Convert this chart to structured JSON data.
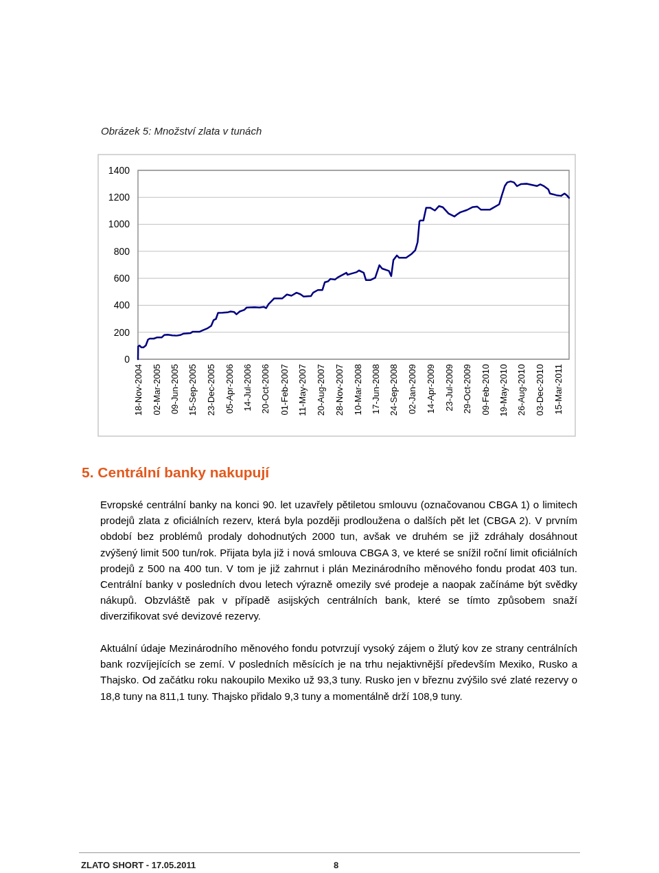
{
  "chart_data": {
    "type": "line",
    "title": "Obrázek 5: Množství zlata v tunách",
    "x": [
      "2004-11-18",
      "2004-11-19",
      "2004-11-26",
      "2004-12-06",
      "2004-12-18",
      "2004-12-31",
      "2005-01-12",
      "2005-01-21",
      "2005-02-13",
      "2005-03-04",
      "2005-03-29",
      "2005-04-11",
      "2005-04-30",
      "2005-05-25",
      "2005-06-19",
      "2005-07-08",
      "2005-07-27",
      "2005-09-03",
      "2005-09-15",
      "2005-10-23",
      "2005-11-11",
      "2005-12-06",
      "2005-12-25",
      "2006-01-07",
      "2006-01-20",
      "2006-02-01",
      "2006-02-26",
      "2006-03-24",
      "2006-04-11",
      "2006-04-30",
      "2006-05-13",
      "2006-05-31",
      "2006-06-25",
      "2006-07-08",
      "2006-08-21",
      "2006-09-16",
      "2006-10-11",
      "2006-10-23",
      "2006-11-05",
      "2006-11-30",
      "2006-12-06",
      "2007-01-20",
      "2007-02-14",
      "2007-03-11",
      "2007-04-08",
      "2007-04-30",
      "2007-05-17",
      "2007-06-26",
      "2007-07-08",
      "2007-08-03",
      "2007-08-28",
      "2007-09-10",
      "2007-09-29",
      "2007-10-11",
      "2007-11-05",
      "2007-11-18",
      "2007-11-24",
      "2008-01-07",
      "2008-01-13",
      "2008-03-04",
      "2008-03-16",
      "2008-04-11",
      "2008-04-23",
      "2008-05-19",
      "2008-06-13",
      "2008-07-06",
      "2008-07-21",
      "2008-08-27",
      "2008-09-09",
      "2008-09-21",
      "2008-10-10",
      "2008-10-23",
      "2008-11-30",
      "2008-12-31",
      "2009-01-19",
      "2009-02-01",
      "2009-02-11",
      "2009-02-16",
      "2009-03-05",
      "2009-03-20",
      "2009-04-11",
      "2009-05-07",
      "2009-05-29",
      "2009-06-20",
      "2009-07-21",
      "2009-08-22",
      "2009-09-04",
      "2009-09-23",
      "2009-10-30",
      "2009-12-01",
      "2009-12-26",
      "2010-01-14",
      "2010-03-06",
      "2010-03-24",
      "2010-04-25",
      "2010-05-10",
      "2010-05-26",
      "2010-06-08",
      "2010-06-27",
      "2010-07-16",
      "2010-08-01",
      "2010-08-22",
      "2010-09-23",
      "2010-10-18",
      "2010-11-18",
      "2010-12-07",
      "2010-12-26",
      "2011-01-20",
      "2011-01-29",
      "2011-03-05",
      "2011-03-31",
      "2011-04-19",
      "2011-05-01",
      "2011-05-14"
    ],
    "series": [
      {
        "color": "#000080",
        "values": [
          0,
          94,
          102,
          88,
          88,
          102,
          145,
          153,
          153,
          162,
          162,
          179,
          182,
          177,
          175,
          179,
          190,
          194,
          204,
          204,
          216,
          230,
          247,
          289,
          298,
          344,
          345,
          347,
          354,
          350,
          333,
          354,
          366,
          383,
          386,
          383,
          388,
          379,
          408,
          442,
          451,
          451,
          480,
          471,
          493,
          481,
          464,
          468,
          493,
          513,
          513,
          570,
          578,
          595,
          590,
          604,
          609,
          641,
          626,
          646,
          658,
          641,
          587,
          587,
          604,
          697,
          672,
          655,
          616,
          735,
          769,
          752,
          752,
          782,
          808,
          868,
          1021,
          1029,
          1029,
          1123,
          1123,
          1102,
          1135,
          1126,
          1080,
          1058,
          1072,
          1089,
          1106,
          1128,
          1131,
          1109,
          1109,
          1123,
          1148,
          1216,
          1284,
          1310,
          1318,
          1310,
          1283,
          1298,
          1301,
          1293,
          1284,
          1296,
          1284,
          1259,
          1228,
          1216,
          1211,
          1228,
          1216,
          1196
        ]
      }
    ],
    "xlim": [
      "2004-11-18",
      "2011-05-14"
    ],
    "xticks": [
      {
        "value": "2004-11-18",
        "label": "18-Nov-2004"
      },
      {
        "value": "2005-03-02",
        "label": "02-Mar-2005"
      },
      {
        "value": "2005-06-09",
        "label": "09-Jun-2005"
      },
      {
        "value": "2005-09-15",
        "label": "15-Sep-2005"
      },
      {
        "value": "2005-12-23",
        "label": "23-Dec-2005"
      },
      {
        "value": "2006-04-05",
        "label": "05-Apr-2006"
      },
      {
        "value": "2006-07-14",
        "label": "14-Jul-2006"
      },
      {
        "value": "2006-10-20",
        "label": "20-Oct-2006"
      },
      {
        "value": "2007-02-01",
        "label": "01-Feb-2007"
      },
      {
        "value": "2007-05-11",
        "label": "11-May-2007"
      },
      {
        "value": "2007-08-20",
        "label": "20-Aug-2007"
      },
      {
        "value": "2007-11-28",
        "label": "28-Nov-2007"
      },
      {
        "value": "2008-03-10",
        "label": "10-Mar-2008"
      },
      {
        "value": "2008-06-17",
        "label": "17-Jun-2008"
      },
      {
        "value": "2008-09-24",
        "label": "24-Sep-2008"
      },
      {
        "value": "2009-01-02",
        "label": "02-Jan-2009"
      },
      {
        "value": "2009-04-14",
        "label": "14-Apr-2009"
      },
      {
        "value": "2009-07-23",
        "label": "23-Jul-2009"
      },
      {
        "value": "2009-10-29",
        "label": "29-Oct-2009"
      },
      {
        "value": "2010-02-09",
        "label": "09-Feb-2010"
      },
      {
        "value": "2010-05-19",
        "label": "19-May-2010"
      },
      {
        "value": "2010-08-26",
        "label": "26-Aug-2010"
      },
      {
        "value": "2010-12-03",
        "label": "03-Dec-2010"
      },
      {
        "value": "2011-03-15",
        "label": "15-Mar-2011"
      }
    ],
    "ylim": [
      0,
      1400
    ],
    "yticks": [
      0,
      200,
      400,
      600,
      800,
      1000,
      1200,
      1400
    ],
    "grid": "y",
    "annotations": [
      "5. Centrální banky nakupují",
      "Evropské centrální banky na konci 90. let uzavřely pětiletou smlouvu (označovanou CBGA 1) o limitech prodejů zlata z oficiálních rezerv, která byla později prodloužena o dalších pět let (CBGA 2). V prvním období bez problémů prodaly dohodnutých 2000 tun, avšak ve druhém se již zdráhaly dosáhnout zvýšený limit 500 tun/rok. Přijata byla již i nová smlouva CBGA 3, ve které se snížil roční limit oficiálních prodejů z 500 na 400 tun. V tom je již zahrnut i plán Mezinárodního měnového fondu prodat 403 tun. Centrální banky v posledních dvou letech výrazně omezily své prodeje a naopak začínáme být svědky nákupů. Obzvláště pak v případě asijských centrálních bank, které se tímto způsobem snaží diverzifikovat své devizové rezervy.",
      "Aktuální údaje Mezinárodního měnového fondu potvrzují vysoký zájem o žlutý kov ze strany centrálních bank rozvíjejících se zemí. V posledních měsících je na trhu nejaktivnější především Mexiko, Rusko a Thajsko. Od začátku roku nakoupilo Mexiko už 93,3 tuny. Rusko jen v březnu zvýšilo své zlaté rezervy o 18,8 tuny na 811,1 tuny. Thajsko přidalo 9,3 tuny a momentálně drží 108,9 tuny.",
      "ZLATO SHORT - 17.05.2011",
      "8"
    ]
  }
}
